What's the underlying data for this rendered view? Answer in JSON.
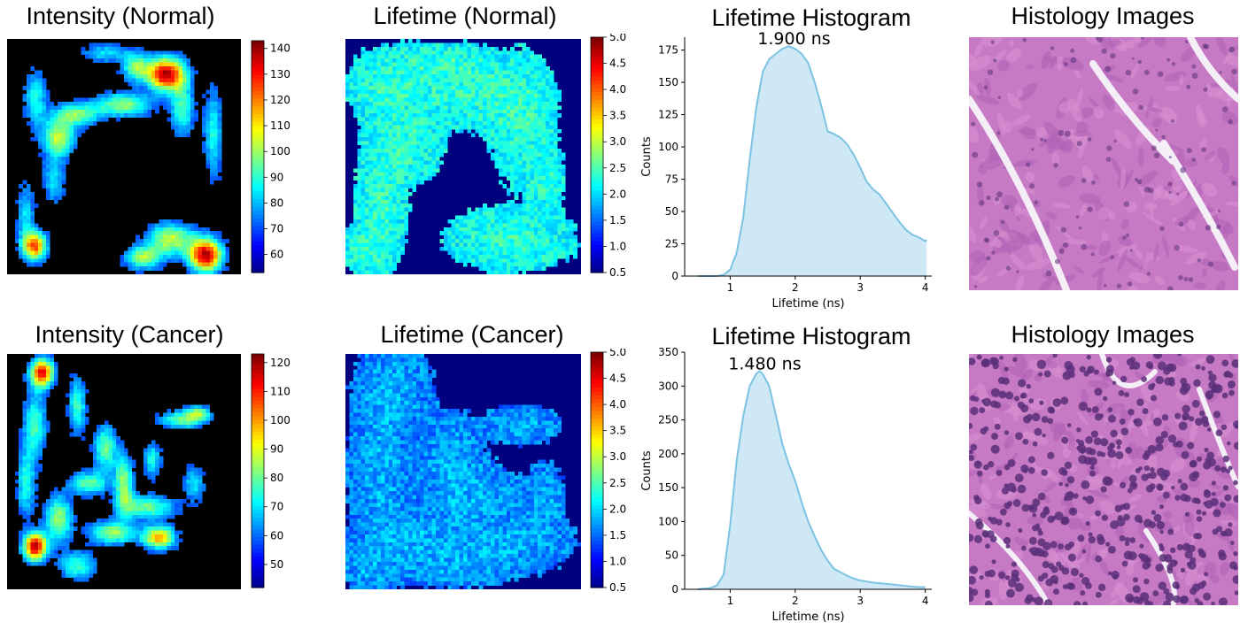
{
  "titles": {
    "intensity_normal": "Intensity (Normal)",
    "lifetime_normal": "Lifetime (Normal)",
    "hist_normal": "Lifetime Histogram",
    "histology_normal": "Histology Images",
    "intensity_cancer": "Intensity (Cancer)",
    "lifetime_cancer": "Lifetime (Cancer)",
    "hist_cancer": "Lifetime Histogram",
    "histology_cancer": "Histology Images"
  },
  "colors": {
    "hist_fill": "#cfe8f5",
    "hist_line": "#7cc3e3",
    "histology_bg": "#c77ac4",
    "histology_nuclei": "#5a2f7a"
  },
  "chart_data": [
    {
      "id": "intensity-normal",
      "type": "heatmap",
      "title": "Intensity (Normal)",
      "colormap": "jet",
      "colorbar_ticks": [
        "140",
        "130",
        "120",
        "110",
        "100",
        "90",
        "80",
        "70",
        "60"
      ],
      "colorbar_range": [
        53,
        143
      ]
    },
    {
      "id": "lifetime-normal",
      "type": "heatmap",
      "title": "Lifetime (Normal)",
      "colormap": "jet",
      "colorbar_ticks": [
        "5.0",
        "4.5",
        "4.0",
        "3.5",
        "3.0",
        "2.5",
        "2.0",
        "1.5",
        "1.0",
        "0.5"
      ],
      "colorbar_range": [
        0.5,
        5.0
      ]
    },
    {
      "id": "hist-normal",
      "type": "area",
      "title": "Lifetime Histogram",
      "annotation": "1.900 ns",
      "xlabel": "Lifetime (ns)",
      "ylabel": "Counts",
      "xlim": [
        0.3,
        4.1
      ],
      "ylim": [
        0,
        185
      ],
      "xticks": [
        1,
        2,
        3,
        4
      ],
      "yticks": [
        0,
        25,
        50,
        75,
        100,
        125,
        150,
        175
      ],
      "x": [
        0.5,
        0.8,
        0.9,
        1.0,
        1.1,
        1.2,
        1.3,
        1.4,
        1.5,
        1.6,
        1.7,
        1.8,
        1.9,
        2.0,
        2.1,
        2.2,
        2.3,
        2.4,
        2.5,
        2.6,
        2.7,
        2.8,
        2.9,
        3.0,
        3.1,
        3.2,
        3.3,
        3.4,
        3.5,
        3.6,
        3.7,
        3.8,
        3.9,
        4.0,
        4.02
      ],
      "y": [
        0,
        0,
        1,
        5,
        18,
        45,
        90,
        130,
        158,
        168,
        172,
        176,
        178,
        176,
        172,
        165,
        150,
        132,
        112,
        110,
        107,
        102,
        94,
        84,
        73,
        67,
        63,
        56,
        49,
        42,
        36,
        32,
        30,
        27,
        28
      ]
    },
    {
      "id": "histology-normal",
      "type": "image",
      "title": "Histology Images"
    },
    {
      "id": "intensity-cancer",
      "type": "heatmap",
      "title": "Intensity (Cancer)",
      "colormap": "jet",
      "colorbar_ticks": [
        "120",
        "110",
        "100",
        "90",
        "80",
        "70",
        "60",
        "50"
      ],
      "colorbar_range": [
        42,
        123
      ]
    },
    {
      "id": "lifetime-cancer",
      "type": "heatmap",
      "title": "Lifetime (Cancer)",
      "colormap": "jet",
      "colorbar_ticks": [
        "5.0",
        "4.5",
        "4.0",
        "3.5",
        "3.0",
        "2.5",
        "2.0",
        "1.5",
        "1.0",
        "0.5"
      ],
      "colorbar_range": [
        0.5,
        5.0
      ]
    },
    {
      "id": "hist-cancer",
      "type": "area",
      "title": "Lifetime Histogram",
      "annotation": "1.480 ns",
      "xlabel": "Lifetime (ns)",
      "ylabel": "Counts",
      "xlim": [
        0.3,
        4.1
      ],
      "ylim": [
        0,
        350
      ],
      "xticks": [
        1,
        2,
        3,
        4
      ],
      "yticks": [
        0,
        50,
        100,
        150,
        200,
        250,
        300,
        350
      ],
      "x": [
        0.5,
        0.7,
        0.8,
        0.9,
        1.0,
        1.1,
        1.2,
        1.3,
        1.4,
        1.45,
        1.5,
        1.6,
        1.7,
        1.8,
        1.9,
        2.0,
        2.1,
        2.2,
        2.3,
        2.4,
        2.5,
        2.6,
        2.7,
        2.8,
        2.9,
        3.0,
        3.2,
        3.4,
        3.6,
        3.8,
        4.0
      ],
      "y": [
        0,
        2,
        6,
        22,
        95,
        190,
        255,
        300,
        318,
        322,
        318,
        300,
        258,
        215,
        185,
        160,
        128,
        100,
        78,
        58,
        42,
        30,
        25,
        20,
        16,
        13,
        10,
        8,
        6,
        4,
        3
      ]
    },
    {
      "id": "histology-cancer",
      "type": "image",
      "title": "Histology Images"
    }
  ]
}
